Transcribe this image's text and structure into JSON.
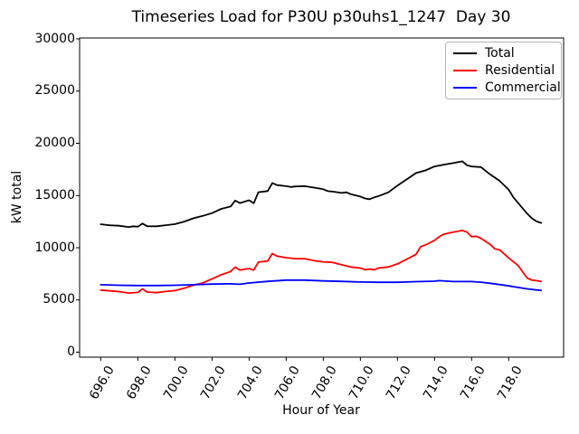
{
  "title": "Timeseries Load for P30U p30uhs1_1247  Day 30",
  "axes": {
    "xlabel": "Hour of Year",
    "ylabel": "kW total"
  },
  "legend": [
    {
      "label": "Total",
      "color": "#000000"
    },
    {
      "label": "Residential",
      "color": "#ff0000"
    },
    {
      "label": "Commercial",
      "color": "#0000ff"
    }
  ],
  "chart_data": {
    "type": "line",
    "title": "Timeseries Load for P30U p30uhs1_1247  Day 30",
    "xlabel": "Hour of Year",
    "ylabel": "kW total",
    "xlim": [
      694.86,
      720.96
    ],
    "ylim": [
      -476,
      30087
    ],
    "xticks": [
      696,
      698,
      700,
      702,
      704,
      706,
      708,
      710,
      712,
      714,
      716,
      718
    ],
    "xtick_labels": [
      "696.0",
      "698.0",
      "700.0",
      "702.0",
      "704.0",
      "706.0",
      "708.0",
      "710.0",
      "712.0",
      "714.0",
      "716.0",
      "718.0"
    ],
    "yticks": [
      0,
      5000,
      10000,
      15000,
      20000,
      25000,
      30000
    ],
    "ytick_labels": [
      "0",
      "5000",
      "10000",
      "15000",
      "20000",
      "25000",
      "30000"
    ],
    "grid": false,
    "legend_position": "upper right",
    "xtick_rotation": 60,
    "series": [
      {
        "name": "Total",
        "color": "#000000",
        "points": [
          [
            696,
            12250
          ],
          [
            696.25,
            12200
          ],
          [
            696.5,
            12150
          ],
          [
            697,
            12100
          ],
          [
            697.5,
            11980
          ],
          [
            697.75,
            12050
          ],
          [
            698,
            12020
          ],
          [
            698.25,
            12320
          ],
          [
            698.5,
            12060
          ],
          [
            699,
            12050
          ],
          [
            699.5,
            12160
          ],
          [
            700,
            12260
          ],
          [
            700.5,
            12500
          ],
          [
            701,
            12820
          ],
          [
            701.5,
            13050
          ],
          [
            702,
            13320
          ],
          [
            702.5,
            13720
          ],
          [
            703,
            13950
          ],
          [
            703.25,
            14520
          ],
          [
            703.5,
            14280
          ],
          [
            704,
            14550
          ],
          [
            704.25,
            14260
          ],
          [
            704.5,
            15320
          ],
          [
            705,
            15430
          ],
          [
            705.25,
            16200
          ],
          [
            705.5,
            16000
          ],
          [
            706,
            15900
          ],
          [
            706.25,
            15820
          ],
          [
            706.5,
            15870
          ],
          [
            707,
            15900
          ],
          [
            707.5,
            15760
          ],
          [
            708,
            15600
          ],
          [
            708.25,
            15420
          ],
          [
            708.5,
            15380
          ],
          [
            709,
            15250
          ],
          [
            709.25,
            15310
          ],
          [
            709.5,
            15120
          ],
          [
            710,
            14900
          ],
          [
            710.25,
            14720
          ],
          [
            710.5,
            14650
          ],
          [
            710.75,
            14820
          ],
          [
            711,
            14960
          ],
          [
            711.5,
            15300
          ],
          [
            712,
            15950
          ],
          [
            712.5,
            16550
          ],
          [
            713,
            17150
          ],
          [
            713.5,
            17400
          ],
          [
            714,
            17780
          ],
          [
            714.5,
            17960
          ],
          [
            715,
            18100
          ],
          [
            715.5,
            18280
          ],
          [
            715.75,
            17900
          ],
          [
            716,
            17780
          ],
          [
            716.5,
            17720
          ],
          [
            717,
            17020
          ],
          [
            717.5,
            16420
          ],
          [
            718,
            15560
          ],
          [
            718.25,
            14820
          ],
          [
            718.5,
            14300
          ],
          [
            719,
            13260
          ],
          [
            719.25,
            12820
          ],
          [
            719.5,
            12520
          ],
          [
            719.75,
            12380
          ]
        ]
      },
      {
        "name": "Residential",
        "color": "#ff0000",
        "points": [
          [
            696,
            5950
          ],
          [
            696.5,
            5870
          ],
          [
            697,
            5800
          ],
          [
            697.5,
            5660
          ],
          [
            698,
            5720
          ],
          [
            698.25,
            6060
          ],
          [
            698.5,
            5760
          ],
          [
            699,
            5700
          ],
          [
            699.5,
            5810
          ],
          [
            700,
            5900
          ],
          [
            700.5,
            6120
          ],
          [
            701,
            6420
          ],
          [
            701.5,
            6620
          ],
          [
            702,
            7020
          ],
          [
            702.5,
            7420
          ],
          [
            703,
            7720
          ],
          [
            703.25,
            8150
          ],
          [
            703.5,
            7860
          ],
          [
            704,
            8010
          ],
          [
            704.25,
            7860
          ],
          [
            704.5,
            8620
          ],
          [
            705,
            8730
          ],
          [
            705.25,
            9450
          ],
          [
            705.5,
            9200
          ],
          [
            706,
            9050
          ],
          [
            706.5,
            8950
          ],
          [
            707,
            8950
          ],
          [
            707.5,
            8760
          ],
          [
            708,
            8650
          ],
          [
            708.5,
            8600
          ],
          [
            709,
            8360
          ],
          [
            709.5,
            8160
          ],
          [
            710,
            8050
          ],
          [
            710.25,
            7900
          ],
          [
            710.5,
            7960
          ],
          [
            710.75,
            7900
          ],
          [
            711,
            8060
          ],
          [
            711.5,
            8160
          ],
          [
            712,
            8450
          ],
          [
            712.5,
            8900
          ],
          [
            713,
            9360
          ],
          [
            713.25,
            10100
          ],
          [
            713.5,
            10260
          ],
          [
            714,
            10700
          ],
          [
            714.25,
            11050
          ],
          [
            714.5,
            11300
          ],
          [
            715,
            11500
          ],
          [
            715.5,
            11650
          ],
          [
            715.75,
            11500
          ],
          [
            716,
            11060
          ],
          [
            716.25,
            11100
          ],
          [
            716.5,
            10900
          ],
          [
            717,
            10320
          ],
          [
            717.25,
            9900
          ],
          [
            717.5,
            9810
          ],
          [
            718,
            9020
          ],
          [
            718.5,
            8300
          ],
          [
            718.75,
            7700
          ],
          [
            719,
            7100
          ],
          [
            719.25,
            6900
          ],
          [
            719.5,
            6850
          ],
          [
            719.75,
            6760
          ]
        ]
      },
      {
        "name": "Commercial",
        "color": "#0000ff",
        "points": [
          [
            696,
            6460
          ],
          [
            697,
            6410
          ],
          [
            698,
            6380
          ],
          [
            699,
            6380
          ],
          [
            700,
            6410
          ],
          [
            701,
            6460
          ],
          [
            702,
            6520
          ],
          [
            703,
            6550
          ],
          [
            703.5,
            6500
          ],
          [
            704,
            6620
          ],
          [
            705,
            6780
          ],
          [
            706,
            6900
          ],
          [
            707,
            6900
          ],
          [
            708,
            6820
          ],
          [
            709,
            6780
          ],
          [
            710,
            6720
          ],
          [
            711,
            6690
          ],
          [
            712,
            6690
          ],
          [
            713,
            6750
          ],
          [
            714,
            6800
          ],
          [
            714.25,
            6850
          ],
          [
            715,
            6760
          ],
          [
            716,
            6760
          ],
          [
            716.5,
            6700
          ],
          [
            717,
            6600
          ],
          [
            717.5,
            6480
          ],
          [
            718,
            6350
          ],
          [
            718.5,
            6200
          ],
          [
            719,
            6060
          ],
          [
            719.5,
            5960
          ],
          [
            719.75,
            5910
          ]
        ]
      }
    ]
  }
}
